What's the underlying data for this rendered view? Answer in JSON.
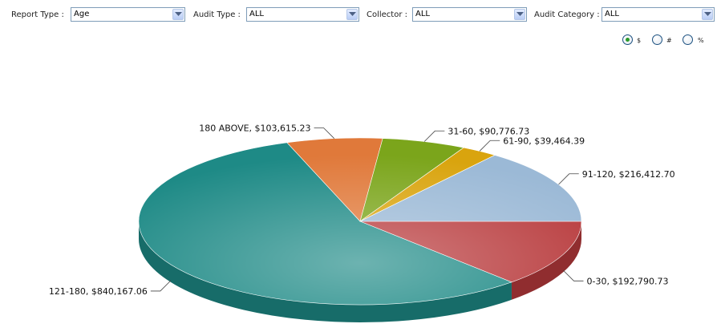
{
  "filters": {
    "report_type": {
      "label": "Report Type :",
      "value": "Age"
    },
    "audit_type": {
      "label": "Audit Type :",
      "value": "ALL"
    },
    "collector": {
      "label": "Collector :",
      "value": "ALL"
    },
    "audit_category": {
      "label": "Audit Category :",
      "value": "ALL"
    }
  },
  "view_options": [
    {
      "label": "$",
      "selected": true
    },
    {
      "label": "#",
      "selected": false
    },
    {
      "label": "%",
      "selected": false
    }
  ],
  "chart_data": {
    "type": "pie",
    "style": "3d",
    "slices": [
      {
        "label": "0-30, $192,790.73",
        "category": "0-30",
        "value": 192790.73,
        "color": "#b83a3c"
      },
      {
        "label": "121-180, $840,167.06",
        "category": "121-180",
        "value": 840167.06,
        "color": "#1e8a86"
      },
      {
        "label": "180 ABOVE, $103,615.23",
        "category": "180 ABOVE",
        "value": 103615.23,
        "color": "#e0793a"
      },
      {
        "label": "31-60, $90,776.73",
        "category": "31-60",
        "value": 90776.73,
        "color": "#7ba51b"
      },
      {
        "label": "61-90, $39,464.39",
        "category": "61-90",
        "value": 39464.39,
        "color": "#d9a40e"
      },
      {
        "label": "91-120, $216,412.70",
        "category": "91-120",
        "value": 216412.7,
        "color": "#9bb9d6"
      }
    ]
  }
}
